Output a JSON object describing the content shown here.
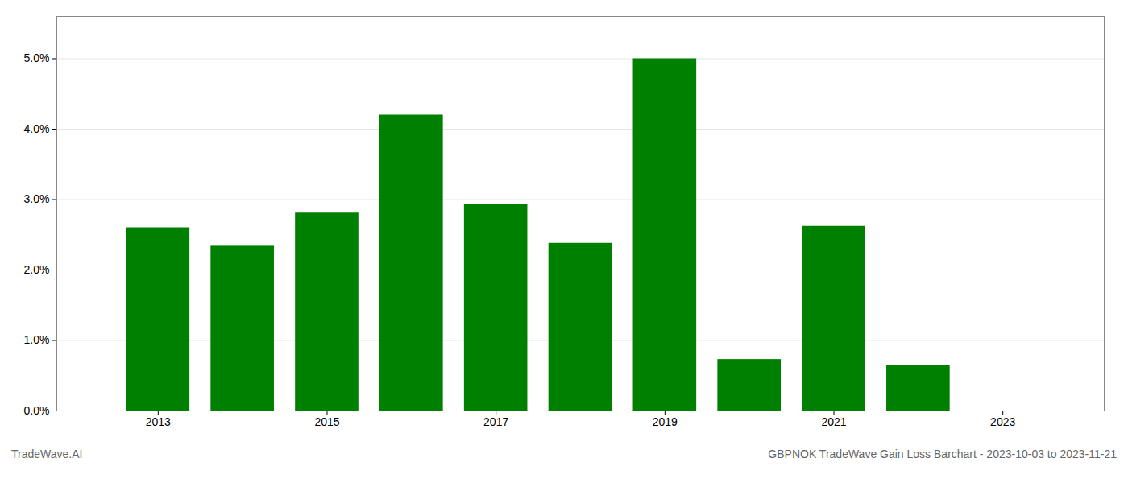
{
  "chart_data": {
    "type": "bar",
    "title": "GBPNOK TradeWave Gain Loss Barchart - 2023-10-03 to 2023-11-21",
    "annotations": [
      "TradeWave.AI"
    ],
    "x": [
      2013,
      2014,
      2015,
      2016,
      2017,
      2018,
      2019,
      2020,
      2021,
      2022
    ],
    "values": [
      0.026,
      0.0235,
      0.0282,
      0.042,
      0.0293,
      0.0238,
      0.05,
      0.0073,
      0.0262,
      0.0065
    ],
    "color": "#008000",
    "xlim": [
      2011.8,
      2024.2
    ],
    "xticks": [
      2013,
      2015,
      2017,
      2019,
      2021,
      2023
    ],
    "ylim": [
      0.0,
      0.056
    ],
    "yticks": [
      {
        "value": 0.0,
        "label": "0.0%"
      },
      {
        "value": 0.01,
        "label": "1.0%"
      },
      {
        "value": 0.02,
        "label": "2.0%"
      },
      {
        "value": 0.03,
        "label": "3.0%"
      },
      {
        "value": 0.04,
        "label": "4.0%"
      },
      {
        "value": 0.05,
        "label": "5.0%"
      }
    ],
    "grid": "y"
  }
}
